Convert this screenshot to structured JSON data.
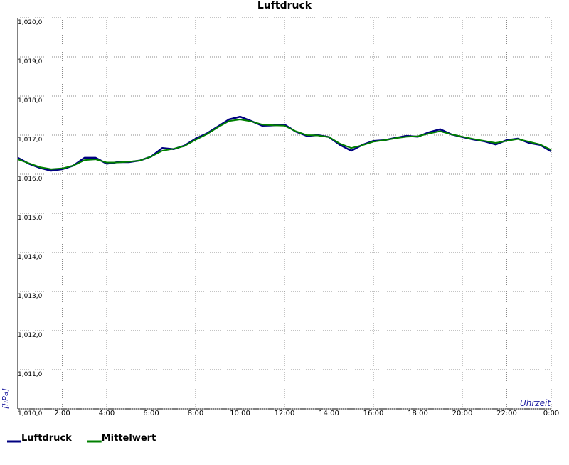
{
  "chart_data": {
    "type": "line",
    "title": "Luftdruck",
    "x_label": "Uhrzeit",
    "y_label": "[hPa]",
    "x": [
      0,
      0.5,
      1,
      1.5,
      2,
      2.5,
      3,
      3.5,
      4,
      4.5,
      5,
      5.5,
      6,
      6.5,
      7,
      7.5,
      8,
      8.5,
      9,
      9.5,
      10,
      10.5,
      11,
      11.5,
      12,
      12.5,
      13,
      13.5,
      14,
      14.5,
      15,
      15.5,
      16,
      16.5,
      17,
      17.5,
      18,
      18.5,
      19,
      19.5,
      20,
      20.5,
      21,
      21.5,
      22,
      22.5,
      23,
      23.5,
      24
    ],
    "series": [
      {
        "name": "Luftdruck",
        "color": "#000080",
        "values": [
          1016.42,
          1016.27,
          1016.16,
          1016.09,
          1016.13,
          1016.22,
          1016.42,
          1016.42,
          1016.27,
          1016.31,
          1016.31,
          1016.35,
          1016.45,
          1016.67,
          1016.64,
          1016.73,
          1016.91,
          1017.04,
          1017.22,
          1017.4,
          1017.47,
          1017.36,
          1017.24,
          1017.25,
          1017.27,
          1017.09,
          1016.98,
          1017.0,
          1016.95,
          1016.75,
          1016.6,
          1016.75,
          1016.85,
          1016.87,
          1016.93,
          1016.98,
          1016.96,
          1017.07,
          1017.15,
          1017.02,
          1016.95,
          1016.89,
          1016.84,
          1016.76,
          1016.87,
          1016.91,
          1016.8,
          1016.75,
          1016.58
        ]
      },
      {
        "name": "Mittelwert",
        "color": "#008000",
        "values": [
          1016.38,
          1016.28,
          1016.18,
          1016.13,
          1016.15,
          1016.22,
          1016.36,
          1016.38,
          1016.3,
          1016.3,
          1016.32,
          1016.35,
          1016.45,
          1016.6,
          1016.65,
          1016.72,
          1016.88,
          1017.02,
          1017.2,
          1017.36,
          1017.4,
          1017.35,
          1017.27,
          1017.25,
          1017.24,
          1017.1,
          1017.0,
          1016.99,
          1016.95,
          1016.78,
          1016.67,
          1016.74,
          1016.83,
          1016.87,
          1016.92,
          1016.96,
          1016.97,
          1017.04,
          1017.1,
          1017.02,
          1016.96,
          1016.9,
          1016.85,
          1016.8,
          1016.85,
          1016.9,
          1016.83,
          1016.76,
          1016.62
        ]
      }
    ],
    "xlim": [
      0,
      24
    ],
    "xticks": [
      {
        "value": 2,
        "label": "2:00"
      },
      {
        "value": 4,
        "label": "4:00"
      },
      {
        "value": 6,
        "label": "6:00"
      },
      {
        "value": 8,
        "label": "8:00"
      },
      {
        "value": 10,
        "label": "10:00"
      },
      {
        "value": 12,
        "label": "12:00"
      },
      {
        "value": 14,
        "label": "14:00"
      },
      {
        "value": 16,
        "label": "16:00"
      },
      {
        "value": 18,
        "label": "18:00"
      },
      {
        "value": 20,
        "label": "20:00"
      },
      {
        "value": 22,
        "label": "22:00"
      },
      {
        "value": 24,
        "label": "0:00"
      }
    ],
    "ylim": [
      1010,
      1020
    ],
    "yticks": [
      {
        "value": 1010,
        "label": "1,010,0"
      },
      {
        "value": 1011,
        "label": "1,011,0"
      },
      {
        "value": 1012,
        "label": "1,012,0"
      },
      {
        "value": 1013,
        "label": "1,013,0"
      },
      {
        "value": 1014,
        "label": "1,014,0"
      },
      {
        "value": 1015,
        "label": "1,015,0"
      },
      {
        "value": 1016,
        "label": "1,016,0"
      },
      {
        "value": 1017,
        "label": "1,017,0"
      },
      {
        "value": 1018,
        "label": "1,018,0"
      },
      {
        "value": 1019,
        "label": "1,019,0"
      },
      {
        "value": 1020,
        "label": "1,020,0"
      }
    ],
    "grid": true
  }
}
